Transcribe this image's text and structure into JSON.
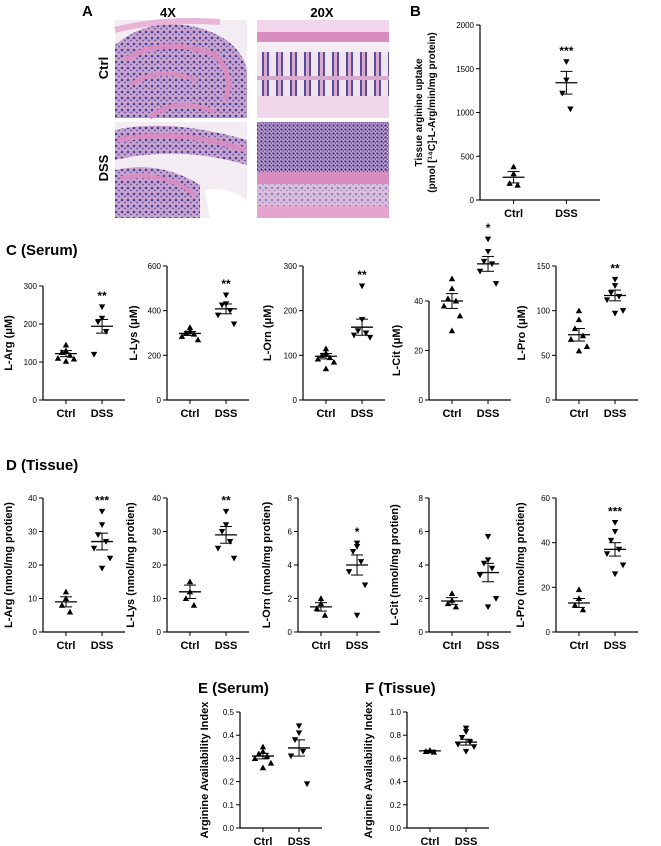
{
  "panels": {
    "A": {
      "letter": "A",
      "col_headers": [
        "4X",
        "20X"
      ],
      "row_labels": [
        "Ctrl",
        "DSS"
      ]
    },
    "C": {
      "letter": "C (Serum)"
    },
    "D": {
      "letter": "D (Tissue)"
    },
    "B": {
      "letter": "B"
    },
    "E": {
      "letter": "E (Serum)"
    },
    "F": {
      "letter": "F (Tissue)"
    }
  },
  "colors": {
    "tissue_pink": "#d98cc0",
    "nuclei_purple": "#4b3f8f",
    "background": "#f4ecf3"
  },
  "chart_data": [
    {
      "id": "B",
      "type": "scatter",
      "categories": [
        "Ctrl",
        "DSS"
      ],
      "ylabel": "Tissue arginine uptake (pmol [¹⁴C]-L-Arg/min/mg protein)",
      "ylim": [
        0,
        2000
      ],
      "yticks": [
        0,
        500,
        1000,
        1500,
        2000
      ],
      "yticklabels": [
        "0",
        "500",
        "1000",
        "1500",
        "2000"
      ],
      "points": [
        [
          380,
          300,
          190,
          170
        ],
        [
          1580,
          1370,
          1220,
          1040
        ]
      ],
      "markers": [
        "triangle-up",
        "triangle-down"
      ],
      "mean": [
        260,
        1340
      ],
      "sem": [
        65,
        130
      ],
      "significance": [
        "",
        "***"
      ]
    },
    {
      "id": "C1",
      "type": "scatter",
      "categories": [
        "Ctrl",
        "DSS"
      ],
      "ylabel": "L-Arg (μM)",
      "ylim": [
        0,
        300
      ],
      "yticks": [
        0,
        100,
        200,
        300
      ],
      "yticklabels": [
        "0",
        "100",
        "200",
        "300"
      ],
      "points": [
        [
          145,
          130,
          125,
          118,
          110,
          108,
          102
        ],
        [
          245,
          215,
          205,
          180,
          120
        ]
      ],
      "markers": [
        "triangle-up",
        "triangle-down"
      ],
      "mean": [
        122,
        194
      ],
      "sem": [
        8,
        18
      ],
      "significance": [
        "",
        "**"
      ]
    },
    {
      "id": "C2",
      "type": "scatter",
      "categories": [
        "Ctrl",
        "DSS"
      ],
      "ylabel": "L-Lys (μM)",
      "ylim": [
        0,
        600
      ],
      "yticks": [
        0,
        200,
        400,
        600
      ],
      "yticklabels": [
        "0",
        "200",
        "400",
        "600"
      ],
      "points": [
        [
          325,
          310,
          300,
          295,
          285,
          270
        ],
        [
          470,
          430,
          425,
          400,
          380,
          340
        ]
      ],
      "markers": [
        "triangle-up",
        "triangle-down"
      ],
      "mean": [
        298,
        408
      ],
      "sem": [
        9,
        22
      ],
      "significance": [
        "",
        "**"
      ]
    },
    {
      "id": "C3",
      "type": "scatter",
      "categories": [
        "Ctrl",
        "DSS"
      ],
      "ylabel": "L-Orn (μM)",
      "ylim": [
        0,
        300
      ],
      "yticks": [
        0,
        100,
        200,
        300
      ],
      "yticklabels": [
        "0",
        "100",
        "200",
        "300"
      ],
      "points": [
        [
          115,
          105,
          100,
          95,
          92,
          85,
          70
        ],
        [
          255,
          180,
          155,
          150,
          145,
          140
        ]
      ],
      "markers": [
        "triangle-up",
        "triangle-down"
      ],
      "mean": [
        98,
        163
      ],
      "sem": [
        6,
        18
      ],
      "significance": [
        "",
        "**"
      ]
    },
    {
      "id": "C4",
      "type": "scatter",
      "categories": [
        "Ctrl",
        "DSS"
      ],
      "ylabel": "L-Cit (μM)",
      "ylim": [
        0,
        40
      ],
      "yticks": [
        0,
        20,
        40
      ],
      "yticklabels": [
        "0",
        "20",
        "40"
      ],
      "points": [
        [
          49,
          45,
          41,
          40,
          38,
          34,
          28
        ],
        [
          65,
          60,
          56,
          55,
          52,
          47
        ]
      ],
      "markers": [
        "triangle-up",
        "triangle-down"
      ],
      "mean": [
        40,
        55
      ],
      "sem": [
        3,
        3
      ],
      "significance": [
        "",
        "*"
      ]
    },
    {
      "id": "C5",
      "type": "scatter",
      "categories": [
        "Ctrl",
        "DSS"
      ],
      "ylabel": "L-Pro (μM)",
      "ylim": [
        0,
        150
      ],
      "yticks": [
        0,
        50,
        100,
        150
      ],
      "yticklabels": [
        "0",
        "50",
        "100",
        "150"
      ],
      "points": [
        [
          100,
          90,
          80,
          72,
          68,
          60,
          55
        ],
        [
          135,
          128,
          120,
          116,
          112,
          100,
          97
        ]
      ],
      "markers": [
        "triangle-up",
        "triangle-down"
      ],
      "mean": [
        73,
        117
      ],
      "sem": [
        7,
        6
      ],
      "significance": [
        "",
        "**"
      ]
    },
    {
      "id": "D1",
      "type": "scatter",
      "categories": [
        "Ctrl",
        "DSS"
      ],
      "ylabel": "L-Arg (nmol/mg protien)",
      "ylim": [
        0,
        40
      ],
      "yticks": [
        0,
        10,
        20,
        30,
        40
      ],
      "yticklabels": [
        "0",
        "10",
        "20",
        "30",
        "40"
      ],
      "points": [
        [
          12,
          10,
          8,
          6
        ],
        [
          36,
          32,
          29,
          27,
          25,
          22,
          19
        ]
      ],
      "markers": [
        "triangle-up",
        "triangle-down"
      ],
      "mean": [
        9,
        27
      ],
      "sem": [
        1.5,
        2.5
      ],
      "significance": [
        "",
        "***"
      ]
    },
    {
      "id": "D2",
      "type": "scatter",
      "categories": [
        "Ctrl",
        "DSS"
      ],
      "ylabel": "L-Lys (nmol/mg protien)",
      "ylim": [
        0,
        40
      ],
      "yticks": [
        0,
        10,
        20,
        30,
        40
      ],
      "yticklabels": [
        "0",
        "10",
        "20",
        "30",
        "40"
      ],
      "points": [
        [
          15,
          12,
          10,
          8
        ],
        [
          36,
          32,
          30,
          27,
          25,
          22
        ]
      ],
      "markers": [
        "triangle-up",
        "triangle-down"
      ],
      "mean": [
        12,
        29
      ],
      "sem": [
        2,
        2.5
      ],
      "significance": [
        "",
        "**"
      ]
    },
    {
      "id": "D3",
      "type": "scatter",
      "categories": [
        "Ctrl",
        "DSS"
      ],
      "ylabel": "L-Orn (nmol/mg protien)",
      "ylim": [
        0,
        8
      ],
      "yticks": [
        0,
        2,
        4,
        6,
        8
      ],
      "yticklabels": [
        "0",
        "2",
        "4",
        "6",
        "8"
      ],
      "points": [
        [
          2.0,
          1.7,
          1.4,
          1.0
        ],
        [
          5.3,
          5.1,
          4.8,
          4.2,
          3.6,
          2.8,
          1.0
        ]
      ],
      "markers": [
        "triangle-up",
        "triangle-down"
      ],
      "mean": [
        1.5,
        4.0
      ],
      "sem": [
        0.25,
        0.6
      ],
      "significance": [
        "",
        "*"
      ]
    },
    {
      "id": "D4",
      "type": "scatter",
      "categories": [
        "Ctrl",
        "DSS"
      ],
      "ylabel": "L-Cit (nmol/mg protien)",
      "ylim": [
        0,
        8
      ],
      "yticks": [
        0,
        2,
        4,
        6,
        8
      ],
      "yticklabels": [
        "0",
        "2",
        "4",
        "6",
        "8"
      ],
      "points": [
        [
          2.3,
          1.9,
          1.7,
          1.5
        ],
        [
          5.7,
          4.3,
          4.1,
          3.8,
          3.4,
          2.0,
          1.5
        ]
      ],
      "markers": [
        "triangle-up",
        "triangle-down"
      ],
      "mean": [
        1.85,
        3.55
      ],
      "sem": [
        0.2,
        0.55
      ],
      "significance": [
        "",
        ""
      ]
    },
    {
      "id": "D5",
      "type": "scatter",
      "categories": [
        "Ctrl",
        "DSS"
      ],
      "ylabel": "L-Pro (nmol/mg protien)",
      "ylim": [
        0,
        60
      ],
      "yticks": [
        0,
        20,
        40,
        60
      ],
      "yticklabels": [
        "0",
        "20",
        "40",
        "60"
      ],
      "points": [
        [
          19,
          15,
          12,
          10
        ],
        [
          49,
          45,
          41,
          37,
          35,
          30,
          26
        ]
      ],
      "markers": [
        "triangle-up",
        "triangle-down"
      ],
      "mean": [
        13,
        37
      ],
      "sem": [
        2,
        3
      ],
      "significance": [
        "",
        "***"
      ]
    },
    {
      "id": "E",
      "type": "scatter",
      "categories": [
        "Ctrl",
        "DSS"
      ],
      "ylabel": "Arginine Availability Index",
      "ylim": [
        0,
        0.5
      ],
      "yticks": [
        0.0,
        0.1,
        0.2,
        0.3,
        0.4,
        0.5
      ],
      "yticklabels": [
        "0.0",
        "0.1",
        "0.2",
        "0.3",
        "0.4",
        "0.5"
      ],
      "points": [
        [
          0.35,
          0.33,
          0.32,
          0.31,
          0.3,
          0.28,
          0.26
        ],
        [
          0.44,
          0.41,
          0.38,
          0.33,
          0.31,
          0.19
        ]
      ],
      "markers": [
        "triangle-up",
        "triangle-down"
      ],
      "mean": [
        0.31,
        0.345
      ],
      "sem": [
        0.012,
        0.035
      ],
      "significance": [
        "",
        ""
      ]
    },
    {
      "id": "F",
      "type": "scatter",
      "categories": [
        "Ctrl",
        "DSS"
      ],
      "ylabel": "Arginine Availability Index",
      "ylim": [
        0,
        1.0
      ],
      "yticks": [
        0.0,
        0.2,
        0.4,
        0.6,
        0.8,
        1.0
      ],
      "yticklabels": [
        "0.0",
        "0.2",
        "0.4",
        "0.6",
        "0.8",
        "1.0"
      ],
      "points": [
        [
          0.67,
          0.665,
          0.66,
          0.655
        ],
        [
          0.86,
          0.83,
          0.78,
          0.74,
          0.72,
          0.7,
          0.66
        ]
      ],
      "markers": [
        "triangle-up",
        "triangle-down"
      ],
      "mean": [
        0.665,
        0.74
      ],
      "sem": [
        0.005,
        0.025
      ],
      "significance": [
        "",
        ""
      ]
    }
  ]
}
